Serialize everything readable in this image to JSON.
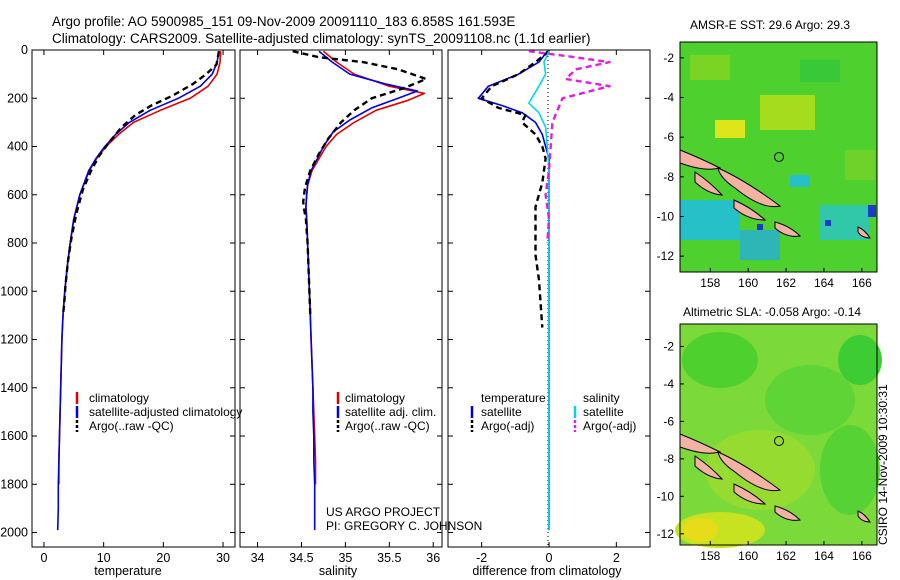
{
  "header": {
    "line1": "Argo profile: AO 5900985_151 09-Nov-2009 20091110_183 6.858S 161.593E",
    "line2": "Climatology: CARS2009. Satellite-adjusted climatology: synTS_20091108.nc (1.1d earlier)"
  },
  "project": {
    "line1": "US ARGO PROJECT",
    "line2": "PI: GREGORY C. JOHNSON"
  },
  "maps": {
    "sst_title": "AMSR-E SST: 29.6 Argo: 29.3",
    "sla_title": "Altimetric SLA: -0.058 Argo: -0.14",
    "stamp": "CSIRO 14-Nov-2009 10:30:31",
    "xticks": [
      "158",
      "160",
      "162",
      "164",
      "166"
    ],
    "yticks": [
      "-2",
      "-4",
      "-6",
      "-8",
      "-10",
      "-12"
    ],
    "colors": {
      "ocean": "#4ed12e",
      "land": "#f4b2a2",
      "warm_patch": "#dce61a",
      "cool_patch": "#26c0c9"
    }
  },
  "chart_data": [
    {
      "type": "line",
      "panel": "temperature",
      "xlabel": "temperature",
      "xlim": [
        -2,
        32
      ],
      "ylim": [
        2060,
        0
      ],
      "xticks": [
        0,
        10,
        20,
        30
      ],
      "yticks": [
        0,
        200,
        400,
        600,
        800,
        1000,
        1200,
        1400,
        1600,
        1800,
        2000
      ],
      "legend": [
        "climatology",
        "satellite-adjusted climatology",
        "Argo(..raw -QC)"
      ],
      "series": [
        {
          "name": "climatology",
          "color": "#e00000",
          "dash": "solid",
          "points": [
            [
              29.6,
              5
            ],
            [
              29.5,
              50
            ],
            [
              29.0,
              100
            ],
            [
              27.5,
              150
            ],
            [
              24.5,
              200
            ],
            [
              19.5,
              250
            ],
            [
              15.0,
              300
            ],
            [
              12.5,
              350
            ],
            [
              10.4,
              400
            ],
            [
              8.8,
              450
            ],
            [
              7.6,
              500
            ],
            [
              6.0,
              600
            ],
            [
              5.0,
              700
            ],
            [
              4.4,
              800
            ],
            [
              3.9,
              900
            ],
            [
              3.5,
              1000
            ],
            [
              3.2,
              1100
            ],
            [
              3.0,
              1200
            ],
            [
              2.9,
              1300
            ],
            [
              2.8,
              1400
            ],
            [
              2.7,
              1500
            ],
            [
              2.6,
              1600
            ],
            [
              2.5,
              1700
            ],
            [
              2.5,
              1800
            ]
          ]
        },
        {
          "name": "satellite-adjusted climatology",
          "color": "#0000e0",
          "dash": "solid",
          "points": [
            [
              29.3,
              5
            ],
            [
              29.0,
              50
            ],
            [
              28.2,
              100
            ],
            [
              26.2,
              150
            ],
            [
              22.5,
              200
            ],
            [
              17.8,
              250
            ],
            [
              14.3,
              300
            ],
            [
              12.0,
              350
            ],
            [
              10.2,
              400
            ],
            [
              8.7,
              450
            ],
            [
              7.5,
              500
            ],
            [
              6.0,
              600
            ],
            [
              5.0,
              700
            ],
            [
              4.4,
              800
            ],
            [
              3.9,
              900
            ],
            [
              3.5,
              1000
            ],
            [
              3.2,
              1100
            ],
            [
              3.0,
              1200
            ],
            [
              2.9,
              1300
            ],
            [
              2.8,
              1400
            ],
            [
              2.7,
              1500
            ],
            [
              2.6,
              1600
            ],
            [
              2.5,
              1700
            ],
            [
              2.4,
              1800
            ],
            [
              2.4,
              1900
            ],
            [
              2.3,
              1990
            ]
          ]
        },
        {
          "name": "Argo(..raw -QC)",
          "color": "#000000",
          "dash": "dashed",
          "points": [
            [
              29.3,
              5
            ],
            [
              29.2,
              20
            ],
            [
              28.9,
              60
            ],
            [
              27.2,
              100
            ],
            [
              25.0,
              140
            ],
            [
              21.5,
              190
            ],
            [
              18.0,
              230
            ],
            [
              15.3,
              270
            ],
            [
              13.0,
              320
            ],
            [
              11.0,
              380
            ],
            [
              9.2,
              440
            ],
            [
              7.9,
              500
            ],
            [
              6.5,
              580
            ],
            [
              5.4,
              680
            ],
            [
              4.6,
              780
            ],
            [
              4.0,
              880
            ],
            [
              3.6,
              980
            ],
            [
              3.4,
              1050
            ],
            [
              3.2,
              1100
            ]
          ]
        }
      ]
    },
    {
      "type": "line",
      "panel": "salinity",
      "xlabel": "salinity",
      "xlim": [
        33.8,
        36.1
      ],
      "ylim": [
        2060,
        0
      ],
      "xticks": [
        34,
        34.5,
        35,
        35.5,
        36
      ],
      "legend": [
        "climatology",
        "satellite adj. clim.",
        "Argo(..raw -QC)"
      ],
      "series": [
        {
          "name": "climatology",
          "color": "#e00000",
          "dash": "solid",
          "points": [
            [
              34.75,
              5
            ],
            [
              34.9,
              50
            ],
            [
              35.1,
              100
            ],
            [
              35.5,
              150
            ],
            [
              35.9,
              180
            ],
            [
              35.7,
              210
            ],
            [
              35.35,
              250
            ],
            [
              35.1,
              300
            ],
            [
              34.9,
              350
            ],
            [
              34.78,
              400
            ],
            [
              34.7,
              450
            ],
            [
              34.62,
              500
            ],
            [
              34.57,
              560
            ],
            [
              34.56,
              600
            ],
            [
              34.55,
              650
            ],
            [
              34.56,
              700
            ],
            [
              34.57,
              800
            ],
            [
              34.58,
              900
            ],
            [
              34.59,
              1000
            ],
            [
              34.6,
              1100
            ],
            [
              34.61,
              1200
            ],
            [
              34.62,
              1300
            ],
            [
              34.63,
              1400
            ],
            [
              34.64,
              1500
            ],
            [
              34.65,
              1600
            ],
            [
              34.66,
              1700
            ],
            [
              34.66,
              1800
            ]
          ]
        },
        {
          "name": "satellite adj. clim.",
          "color": "#0000e0",
          "dash": "solid",
          "points": [
            [
              34.7,
              5
            ],
            [
              34.85,
              50
            ],
            [
              35.05,
              100
            ],
            [
              35.45,
              140
            ],
            [
              35.82,
              170
            ],
            [
              35.6,
              200
            ],
            [
              35.3,
              240
            ],
            [
              35.05,
              290
            ],
            [
              34.86,
              340
            ],
            [
              34.75,
              400
            ],
            [
              34.68,
              450
            ],
            [
              34.61,
              500
            ],
            [
              34.57,
              560
            ],
            [
              34.56,
              600
            ],
            [
              34.55,
              650
            ],
            [
              34.56,
              700
            ],
            [
              34.57,
              800
            ],
            [
              34.58,
              900
            ],
            [
              34.59,
              1000
            ],
            [
              34.6,
              1100
            ],
            [
              34.61,
              1200
            ],
            [
              34.62,
              1300
            ],
            [
              34.63,
              1400
            ],
            [
              34.63,
              1500
            ],
            [
              34.64,
              1600
            ],
            [
              34.64,
              1700
            ],
            [
              34.65,
              1800
            ],
            [
              34.65,
              1900
            ],
            [
              34.65,
              1990
            ]
          ]
        },
        {
          "name": "Argo(..raw -QC)",
          "color": "#000000",
          "dash": "dashed",
          "points": [
            [
              34.4,
              5
            ],
            [
              34.7,
              30
            ],
            [
              35.2,
              50
            ],
            [
              35.6,
              80
            ],
            [
              35.92,
              120
            ],
            [
              35.65,
              160
            ],
            [
              35.3,
              200
            ],
            [
              35.1,
              250
            ],
            [
              34.95,
              300
            ],
            [
              34.8,
              370
            ],
            [
              34.7,
              430
            ],
            [
              34.6,
              500
            ],
            [
              34.54,
              570
            ],
            [
              34.52,
              630
            ],
            [
              34.53,
              660
            ],
            [
              34.55,
              700
            ],
            [
              34.57,
              800
            ],
            [
              34.58,
              900
            ],
            [
              34.59,
              1000
            ],
            [
              34.6,
              1100
            ]
          ]
        }
      ]
    },
    {
      "type": "line",
      "panel": "difference",
      "xlabel": "difference from climatology",
      "xlim": [
        -3,
        3
      ],
      "ylim": [
        2060,
        0
      ],
      "xticks": [
        -2,
        0,
        2
      ],
      "legend_titles": [
        "temperature",
        "salinity"
      ],
      "legend": [
        "satellite",
        "Argo(-adj)",
        "satellite",
        "Argo(-adj)"
      ],
      "series": [
        {
          "name": "temperature satellite",
          "color": "#0000e0",
          "dash": "solid",
          "points": [
            [
              -0.05,
              5
            ],
            [
              -0.3,
              50
            ],
            [
              -0.9,
              100
            ],
            [
              -1.8,
              150
            ],
            [
              -2.1,
              200
            ],
            [
              -1.4,
              230
            ],
            [
              -0.8,
              260
            ],
            [
              -0.4,
              300
            ],
            [
              -0.2,
              350
            ],
            [
              -0.1,
              400
            ],
            [
              0.0,
              450
            ],
            [
              0.0,
              600
            ],
            [
              0.0,
              800
            ],
            [
              0.0,
              1000
            ],
            [
              0.0,
              1200
            ],
            [
              0.0,
              1400
            ],
            [
              0.0,
              1600
            ],
            [
              0.0,
              1800
            ],
            [
              0.0,
              1990
            ]
          ]
        },
        {
          "name": "temperature Argo(-adj)",
          "color": "#000000",
          "dash": "dashed",
          "points": [
            [
              0.0,
              5
            ],
            [
              -0.4,
              50
            ],
            [
              -0.9,
              100
            ],
            [
              -1.7,
              150
            ],
            [
              -2.0,
              200
            ],
            [
              -1.5,
              240
            ],
            [
              -0.7,
              270
            ],
            [
              -0.8,
              300
            ],
            [
              -0.4,
              350
            ],
            [
              -0.2,
              400
            ],
            [
              -0.1,
              450
            ],
            [
              -0.2,
              550
            ],
            [
              -0.4,
              650
            ],
            [
              -0.4,
              750
            ],
            [
              -0.4,
              850
            ],
            [
              -0.3,
              950
            ],
            [
              -0.25,
              1050
            ],
            [
              -0.2,
              1150
            ]
          ]
        },
        {
          "name": "salinity satellite",
          "color": "#00d8e8",
          "dash": "solid",
          "points": [
            [
              0.0,
              5
            ],
            [
              -0.15,
              50
            ],
            [
              -0.1,
              100
            ],
            [
              -0.3,
              150
            ],
            [
              -0.6,
              220
            ],
            [
              -0.3,
              260
            ],
            [
              -0.1,
              320
            ],
            [
              -0.05,
              400
            ],
            [
              0.0,
              500
            ],
            [
              0.0,
              700
            ],
            [
              0.0,
              1000
            ],
            [
              0.0,
              1300
            ],
            [
              0.0,
              1600
            ],
            [
              0.0,
              1800
            ],
            [
              0.0,
              1990
            ]
          ]
        },
        {
          "name": "salinity Argo(-adj)",
          "color": "#e020e0",
          "dash": "dashed",
          "points": [
            [
              -0.6,
              5
            ],
            [
              0.5,
              25
            ],
            [
              1.8,
              50
            ],
            [
              0.8,
              80
            ],
            [
              0.5,
              120
            ],
            [
              1.8,
              150
            ],
            [
              0.4,
              200
            ],
            [
              0.1,
              300
            ],
            [
              0.05,
              400
            ],
            [
              0.0,
              500
            ],
            [
              -0.1,
              600
            ],
            [
              0.0,
              700
            ],
            [
              -0.05,
              800
            ]
          ]
        }
      ]
    }
  ]
}
